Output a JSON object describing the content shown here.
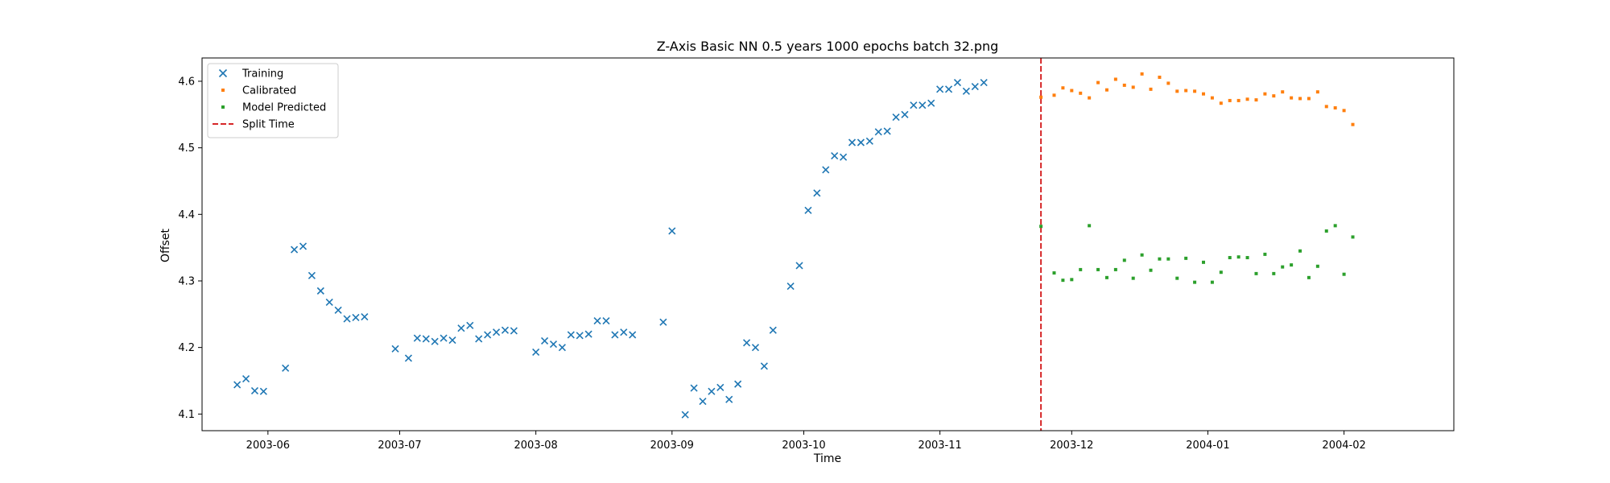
{
  "chart_data": {
    "type": "scatter",
    "title": "Z-Axis Basic NN 0.5 years 1000 epochs batch 32.png",
    "xlabel": "Time",
    "ylabel": "Offset",
    "xlim": [
      "2003-05-17",
      "2004-02-26"
    ],
    "ylim": [
      4.075,
      4.635
    ],
    "x_ticks": [
      "2003-06-01",
      "2003-07-01",
      "2003-08-01",
      "2003-09-01",
      "2003-10-01",
      "2003-11-01",
      "2003-12-01",
      "2004-01-01",
      "2004-02-01"
    ],
    "x_tick_labels": [
      "2003-06",
      "2003-07",
      "2003-08",
      "2003-09",
      "2003-10",
      "2003-11",
      "2003-12",
      "2004-01",
      "2004-02"
    ],
    "y_ticks": [
      4.1,
      4.2,
      4.3,
      4.4,
      4.5,
      4.6
    ],
    "y_tick_labels": [
      "4.1",
      "4.2",
      "4.3",
      "4.4",
      "4.5",
      "4.6"
    ],
    "grid": false,
    "legend_position": "upper-left",
    "split_time": "2003-11-24",
    "series": [
      {
        "name": "Training",
        "marker": "x",
        "color": "#1f77b4",
        "points": [
          [
            "2003-05-25",
            4.144
          ],
          [
            "2003-05-27",
            4.153
          ],
          [
            "2003-05-29",
            4.135
          ],
          [
            "2003-05-31",
            4.134
          ],
          [
            "2003-06-05",
            4.169
          ],
          [
            "2003-06-07",
            4.347
          ],
          [
            "2003-06-09",
            4.352
          ],
          [
            "2003-06-11",
            4.308
          ],
          [
            "2003-06-13",
            4.285
          ],
          [
            "2003-06-15",
            4.268
          ],
          [
            "2003-06-17",
            4.256
          ],
          [
            "2003-06-19",
            4.243
          ],
          [
            "2003-06-21",
            4.245
          ],
          [
            "2003-06-23",
            4.246
          ],
          [
            "2003-06-30",
            4.198
          ],
          [
            "2003-07-03",
            4.184
          ],
          [
            "2003-07-05",
            4.214
          ],
          [
            "2003-07-07",
            4.213
          ],
          [
            "2003-07-09",
            4.209
          ],
          [
            "2003-07-11",
            4.214
          ],
          [
            "2003-07-13",
            4.211
          ],
          [
            "2003-07-15",
            4.229
          ],
          [
            "2003-07-17",
            4.233
          ],
          [
            "2003-07-19",
            4.213
          ],
          [
            "2003-07-21",
            4.219
          ],
          [
            "2003-07-23",
            4.223
          ],
          [
            "2003-07-25",
            4.226
          ],
          [
            "2003-07-27",
            4.225
          ],
          [
            "2003-08-01",
            4.193
          ],
          [
            "2003-08-03",
            4.21
          ],
          [
            "2003-08-05",
            4.205
          ],
          [
            "2003-08-07",
            4.2
          ],
          [
            "2003-08-09",
            4.219
          ],
          [
            "2003-08-11",
            4.218
          ],
          [
            "2003-08-13",
            4.22
          ],
          [
            "2003-08-15",
            4.24
          ],
          [
            "2003-08-17",
            4.24
          ],
          [
            "2003-08-19",
            4.219
          ],
          [
            "2003-08-21",
            4.223
          ],
          [
            "2003-08-23",
            4.219
          ],
          [
            "2003-08-30",
            4.238
          ],
          [
            "2003-09-01",
            4.375
          ],
          [
            "2003-09-04",
            4.099
          ],
          [
            "2003-09-06",
            4.139
          ],
          [
            "2003-09-08",
            4.119
          ],
          [
            "2003-09-10",
            4.134
          ],
          [
            "2003-09-12",
            4.14
          ],
          [
            "2003-09-14",
            4.122
          ],
          [
            "2003-09-16",
            4.145
          ],
          [
            "2003-09-18",
            4.207
          ],
          [
            "2003-09-20",
            4.2
          ],
          [
            "2003-09-22",
            4.172
          ],
          [
            "2003-09-24",
            4.226
          ],
          [
            "2003-09-28",
            4.292
          ],
          [
            "2003-09-30",
            4.323
          ],
          [
            "2003-10-02",
            4.406
          ],
          [
            "2003-10-04",
            4.432
          ],
          [
            "2003-10-06",
            4.467
          ],
          [
            "2003-10-08",
            4.488
          ],
          [
            "2003-10-10",
            4.486
          ],
          [
            "2003-10-12",
            4.508
          ],
          [
            "2003-10-14",
            4.508
          ],
          [
            "2003-10-16",
            4.51
          ],
          [
            "2003-10-18",
            4.524
          ],
          [
            "2003-10-20",
            4.525
          ],
          [
            "2003-10-22",
            4.546
          ],
          [
            "2003-10-24",
            4.55
          ],
          [
            "2003-10-26",
            4.564
          ],
          [
            "2003-10-28",
            4.564
          ],
          [
            "2003-10-30",
            4.567
          ],
          [
            "2003-11-01",
            4.588
          ],
          [
            "2003-11-03",
            4.588
          ],
          [
            "2003-11-05",
            4.598
          ],
          [
            "2003-11-07",
            4.585
          ],
          [
            "2003-11-09",
            4.592
          ],
          [
            "2003-11-11",
            4.598
          ]
        ]
      },
      {
        "name": "Calibrated",
        "marker": "square",
        "color": "#ff7f0e",
        "points": [
          [
            "2003-11-24",
            4.576
          ],
          [
            "2003-11-27",
            4.579
          ],
          [
            "2003-11-29",
            4.59
          ],
          [
            "2003-12-01",
            4.586
          ],
          [
            "2003-12-03",
            4.582
          ],
          [
            "2003-12-05",
            4.575
          ],
          [
            "2003-12-07",
            4.598
          ],
          [
            "2003-12-09",
            4.587
          ],
          [
            "2003-12-11",
            4.603
          ],
          [
            "2003-12-13",
            4.594
          ],
          [
            "2003-12-15",
            4.591
          ],
          [
            "2003-12-17",
            4.611
          ],
          [
            "2003-12-19",
            4.588
          ],
          [
            "2003-12-21",
            4.606
          ],
          [
            "2003-12-23",
            4.597
          ],
          [
            "2003-12-25",
            4.585
          ],
          [
            "2003-12-27",
            4.586
          ],
          [
            "2003-12-29",
            4.585
          ],
          [
            "2003-12-31",
            4.581
          ],
          [
            "2004-01-02",
            4.575
          ],
          [
            "2004-01-04",
            4.567
          ],
          [
            "2004-01-06",
            4.571
          ],
          [
            "2004-01-08",
            4.571
          ],
          [
            "2004-01-10",
            4.573
          ],
          [
            "2004-01-12",
            4.572
          ],
          [
            "2004-01-14",
            4.581
          ],
          [
            "2004-01-16",
            4.578
          ],
          [
            "2004-01-18",
            4.584
          ],
          [
            "2004-01-20",
            4.575
          ],
          [
            "2004-01-22",
            4.574
          ],
          [
            "2004-01-24",
            4.574
          ],
          [
            "2004-01-26",
            4.584
          ],
          [
            "2004-01-28",
            4.562
          ],
          [
            "2004-01-30",
            4.56
          ],
          [
            "2004-02-01",
            4.556
          ],
          [
            "2004-02-03",
            4.535
          ]
        ]
      },
      {
        "name": "Model Predicted",
        "marker": "square",
        "color": "#2ca02c",
        "points": [
          [
            "2003-11-24",
            4.382
          ],
          [
            "2003-11-27",
            4.312
          ],
          [
            "2003-11-29",
            4.301
          ],
          [
            "2003-12-01",
            4.302
          ],
          [
            "2003-12-03",
            4.317
          ],
          [
            "2003-12-05",
            4.383
          ],
          [
            "2003-12-07",
            4.317
          ],
          [
            "2003-12-09",
            4.305
          ],
          [
            "2003-12-11",
            4.317
          ],
          [
            "2003-12-13",
            4.331
          ],
          [
            "2003-12-15",
            4.304
          ],
          [
            "2003-12-17",
            4.339
          ],
          [
            "2003-12-19",
            4.316
          ],
          [
            "2003-12-21",
            4.333
          ],
          [
            "2003-12-23",
            4.333
          ],
          [
            "2003-12-25",
            4.304
          ],
          [
            "2003-12-27",
            4.334
          ],
          [
            "2003-12-29",
            4.298
          ],
          [
            "2003-12-31",
            4.328
          ],
          [
            "2004-01-02",
            4.298
          ],
          [
            "2004-01-04",
            4.313
          ],
          [
            "2004-01-06",
            4.335
          ],
          [
            "2004-01-08",
            4.336
          ],
          [
            "2004-01-10",
            4.335
          ],
          [
            "2004-01-12",
            4.311
          ],
          [
            "2004-01-14",
            4.34
          ],
          [
            "2004-01-16",
            4.311
          ],
          [
            "2004-01-18",
            4.321
          ],
          [
            "2004-01-20",
            4.324
          ],
          [
            "2004-01-22",
            4.345
          ],
          [
            "2004-01-24",
            4.305
          ],
          [
            "2004-01-26",
            4.322
          ],
          [
            "2004-01-28",
            4.375
          ],
          [
            "2004-01-30",
            4.383
          ],
          [
            "2004-02-01",
            4.31
          ],
          [
            "2004-02-03",
            4.366
          ]
        ]
      }
    ],
    "reference_lines": [
      {
        "name": "Split Time",
        "orientation": "vertical",
        "x": "2003-11-24",
        "color": "#d62728",
        "style": "dashed"
      }
    ]
  }
}
